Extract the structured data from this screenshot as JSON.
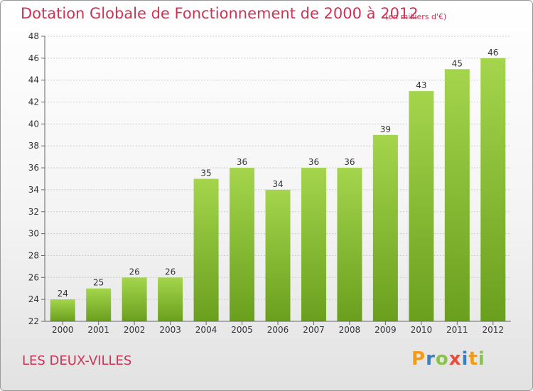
{
  "header": {
    "title": "Dotation Globale de Fonctionnement de 2000 à 2012",
    "subtitle": "(en milliers d'€)"
  },
  "footer": {
    "city": "LES DEUX-VILLES",
    "logo": "Proxiti"
  },
  "colors": {
    "title": "#cc3355",
    "bar_light": "#a4d54c",
    "bar_dark": "#6a9f1e",
    "grid": "#cccccc"
  },
  "chart_data": {
    "type": "bar",
    "categories": [
      "2000",
      "2001",
      "2002",
      "2003",
      "2004",
      "2005",
      "2006",
      "2007",
      "2008",
      "2009",
      "2010",
      "2011",
      "2012"
    ],
    "values": [
      24,
      25,
      26,
      26,
      35,
      36,
      34,
      36,
      36,
      39,
      43,
      45,
      46
    ],
    "ylim": [
      22,
      48
    ],
    "yticks": [
      22,
      24,
      26,
      28,
      30,
      32,
      34,
      36,
      38,
      40,
      42,
      44,
      46,
      48
    ],
    "grid": true,
    "xlabel": "",
    "ylabel": ""
  }
}
